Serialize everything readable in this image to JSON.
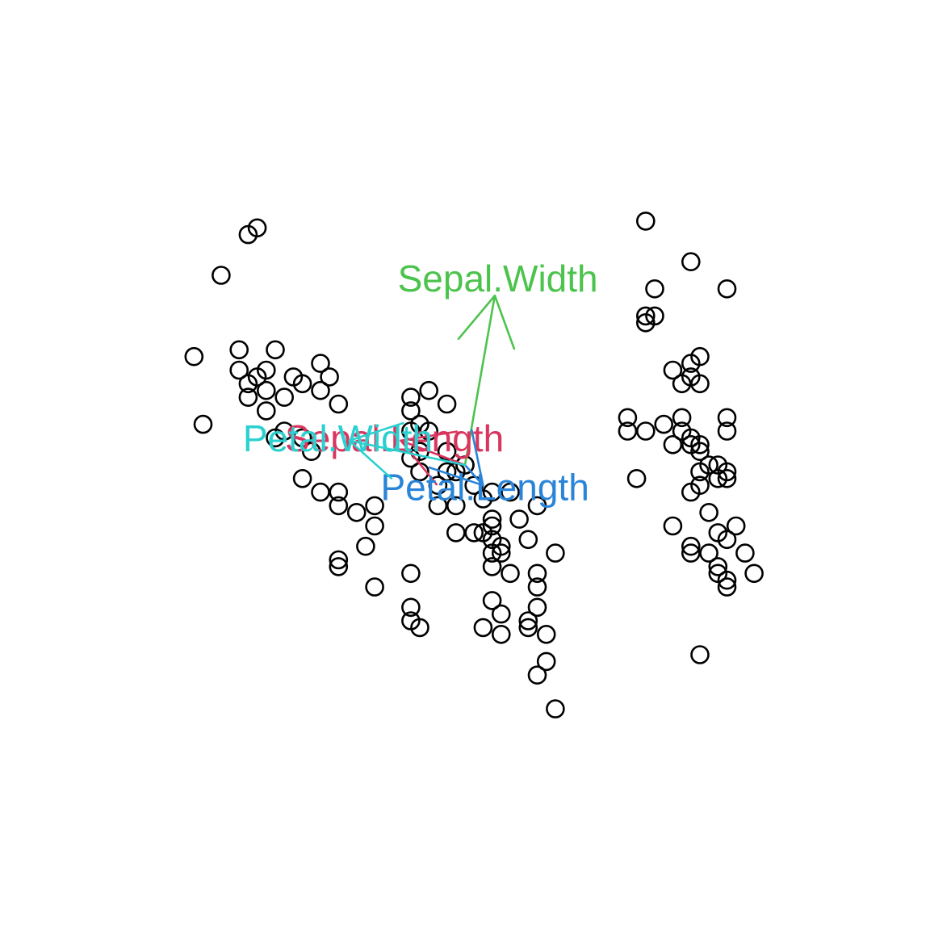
{
  "chart_data": {
    "type": "scatter",
    "title": "",
    "xlabel": "",
    "ylabel": "",
    "axes_shown": false,
    "grid": false,
    "marker": "open-circle",
    "xlim": [
      -4.2,
      4.2
    ],
    "ylim": [
      -5.6,
      5.6
    ],
    "points": [
      [
        -2.4,
        3.4
      ],
      [
        -2.3,
        3.5
      ],
      [
        -2.7,
        2.8
      ],
      [
        -3.0,
        1.6
      ],
      [
        -2.9,
        0.6
      ],
      [
        -2.5,
        1.7
      ],
      [
        -2.5,
        1.4
      ],
      [
        -2.4,
        1.2
      ],
      [
        -2.3,
        1.3
      ],
      [
        -2.2,
        1.4
      ],
      [
        -2.1,
        1.7
      ],
      [
        -2.2,
        1.1
      ],
      [
        -2.0,
        1.0
      ],
      [
        -1.9,
        1.3
      ],
      [
        -1.8,
        1.2
      ],
      [
        -1.6,
        1.5
      ],
      [
        -1.6,
        1.1
      ],
      [
        -1.5,
        1.3
      ],
      [
        -2.4,
        1.0
      ],
      [
        -2.2,
        0.8
      ],
      [
        -2.0,
        0.5
      ],
      [
        -1.8,
        0.4
      ],
      [
        -1.7,
        0.2
      ],
      [
        -2.1,
        0.4
      ],
      [
        -1.4,
        0.9
      ],
      [
        -1.8,
        -0.2
      ],
      [
        -1.6,
        -0.4
      ],
      [
        -1.4,
        -0.4
      ],
      [
        -1.4,
        -0.6
      ],
      [
        -1.2,
        -0.7
      ],
      [
        -1.0,
        -0.6
      ],
      [
        -1.0,
        -0.9
      ],
      [
        -1.1,
        -1.2
      ],
      [
        -1.4,
        -1.5
      ],
      [
        -1.4,
        -1.4
      ],
      [
        -1.0,
        -1.8
      ],
      [
        -0.6,
        -1.6
      ],
      [
        -0.6,
        -2.3
      ],
      [
        -0.6,
        -2.1
      ],
      [
        -0.5,
        -2.4
      ],
      [
        -0.6,
        0.5
      ],
      [
        -0.5,
        0.6
      ],
      [
        -0.6,
        0.8
      ],
      [
        -0.6,
        1.0
      ],
      [
        -0.4,
        1.1
      ],
      [
        -0.4,
        0.5
      ],
      [
        -0.2,
        0.9
      ],
      [
        -0.5,
        0.2
      ],
      [
        -0.6,
        0.1
      ],
      [
        -0.5,
        -0.1
      ],
      [
        -0.3,
        -0.3
      ],
      [
        -0.2,
        -0.1
      ],
      [
        -0.2,
        0.2
      ],
      [
        -0.1,
        -0.1
      ],
      [
        0.0,
        0.0
      ],
      [
        -0.3,
        -0.6
      ],
      [
        -0.1,
        -0.6
      ],
      [
        -0.1,
        -1.0
      ],
      [
        0.1,
        -1.0
      ],
      [
        0.0,
        0.0
      ],
      [
        0.2,
        -1.0
      ],
      [
        0.1,
        -0.3
      ],
      [
        0.2,
        -0.5
      ],
      [
        0.3,
        -0.4
      ],
      [
        0.3,
        -0.8
      ],
      [
        0.3,
        -0.9
      ],
      [
        0.3,
        -1.1
      ],
      [
        0.4,
        -1.2
      ],
      [
        0.3,
        -1.3
      ],
      [
        0.3,
        -1.5
      ],
      [
        0.4,
        -1.3
      ],
      [
        0.5,
        -1.6
      ],
      [
        0.3,
        -2.0
      ],
      [
        0.4,
        -2.2
      ],
      [
        0.4,
        -2.5
      ],
      [
        0.2,
        -2.4
      ],
      [
        0.8,
        -2.1
      ],
      [
        0.7,
        -2.4
      ],
      [
        0.7,
        -2.3
      ],
      [
        0.8,
        -1.6
      ],
      [
        0.8,
        -1.8
      ],
      [
        1.0,
        -1.3
      ],
      [
        0.9,
        -2.5
      ],
      [
        0.9,
        -2.9
      ],
      [
        0.8,
        -3.1
      ],
      [
        0.5,
        -0.4
      ],
      [
        1.0,
        -3.6
      ],
      [
        0.6,
        -0.8
      ],
      [
        0.8,
        -0.6
      ],
      [
        0.7,
        -1.1
      ],
      [
        2.0,
        3.6
      ],
      [
        2.5,
        3.0
      ],
      [
        2.1,
        2.6
      ],
      [
        2.0,
        2.2
      ],
      [
        2.1,
        2.2
      ],
      [
        2.0,
        2.1
      ],
      [
        2.9,
        2.6
      ],
      [
        2.5,
        1.5
      ],
      [
        2.6,
        1.6
      ],
      [
        2.3,
        1.4
      ],
      [
        2.5,
        1.3
      ],
      [
        2.4,
        1.2
      ],
      [
        2.6,
        1.2
      ],
      [
        1.8,
        0.7
      ],
      [
        1.8,
        0.5
      ],
      [
        2.2,
        0.6
      ],
      [
        2.4,
        0.5
      ],
      [
        2.5,
        0.4
      ],
      [
        2.3,
        0.3
      ],
      [
        2.5,
        0.3
      ],
      [
        2.6,
        0.3
      ],
      [
        2.9,
        0.7
      ],
      [
        2.9,
        0.5
      ],
      [
        2.6,
        0.2
      ],
      [
        2.8,
        0.0
      ],
      [
        2.9,
        -0.1
      ],
      [
        2.6,
        -0.1
      ],
      [
        2.8,
        -0.2
      ],
      [
        2.9,
        -0.2
      ],
      [
        1.9,
        -0.2
      ],
      [
        2.5,
        -0.4
      ],
      [
        2.7,
        -0.7
      ],
      [
        3.0,
        -0.9
      ],
      [
        2.8,
        -1.0
      ],
      [
        2.9,
        -1.1
      ],
      [
        2.5,
        -1.2
      ],
      [
        2.5,
        -1.3
      ],
      [
        2.7,
        -1.3
      ],
      [
        3.1,
        -1.3
      ],
      [
        2.8,
        -1.6
      ],
      [
        2.9,
        -1.8
      ],
      [
        2.6,
        -2.8
      ],
      [
        3.2,
        -1.6
      ],
      [
        2.9,
        -1.7
      ],
      [
        2.8,
        -1.5
      ],
      [
        2.0,
        0.5
      ],
      [
        2.4,
        0.7
      ],
      [
        2.7,
        0.0
      ],
      [
        2.6,
        -0.3
      ],
      [
        2.3,
        -0.9
      ]
    ],
    "arrows": [
      {
        "name": "Sepal.Width",
        "x": 0.33,
        "y": 2.5,
        "color": "#4cc34c"
      },
      {
        "name": "Sepal.Length",
        "x": -0.71,
        "y": 0.36,
        "color": "#d9365f"
      },
      {
        "name": "Petal.Length",
        "x": 0.2,
        "y": -0.3,
        "color": "#2a84d8"
      },
      {
        "name": "Petal.Width",
        "x": -1.28,
        "y": 0.36,
        "color": "#2bd0d0"
      }
    ]
  }
}
